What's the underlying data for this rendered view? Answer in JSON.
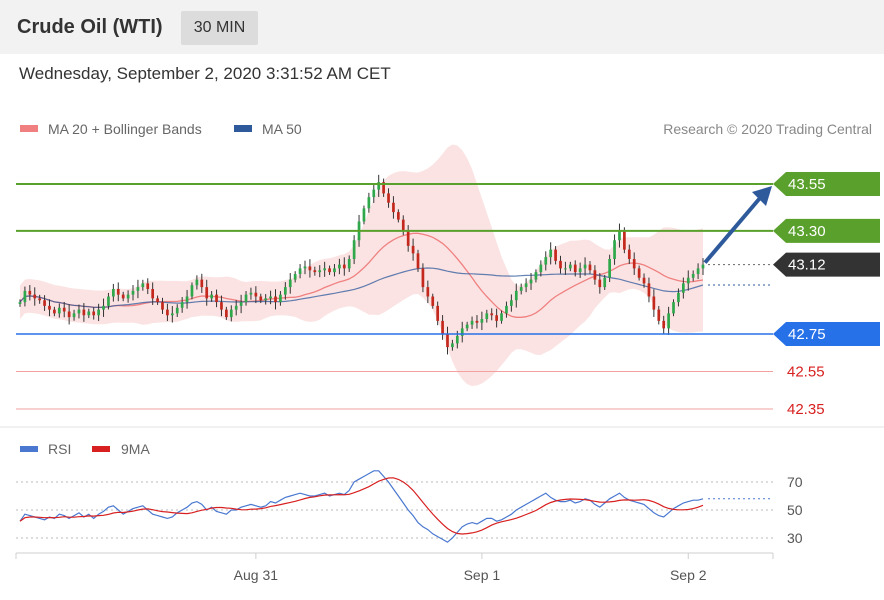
{
  "header": {
    "title": "Crude Oil (WTI)",
    "timeframe": "30 MIN",
    "datetime": "Wednesday, September 2, 2020 3:31:52 AM CET"
  },
  "legend": {
    "ma20_label": "MA 20 + Bollinger Bands",
    "ma20_color": "#f08080",
    "ma50_label": "MA 50",
    "ma50_color": "#2e5a9c",
    "credit": "Research © 2020 Trading Central"
  },
  "levels": [
    {
      "value": 43.55,
      "label": "43.55",
      "kind": "resistance",
      "color": "#5aa02c"
    },
    {
      "value": 43.3,
      "label": "43.30",
      "kind": "resistance",
      "color": "#5aa02c"
    },
    {
      "value": 43.12,
      "label": "43.12",
      "kind": "last",
      "color": "#333333"
    },
    {
      "value": 42.75,
      "label": "42.75",
      "kind": "pivot",
      "color": "#2670e8"
    },
    {
      "value": 42.55,
      "label": "42.55",
      "kind": "support",
      "color": "#d82020"
    },
    {
      "value": 42.35,
      "label": "42.35",
      "kind": "support",
      "color": "#d82020"
    }
  ],
  "rsi_legend": {
    "rsi_label": "RSI",
    "rsi_color": "#4a78d0",
    "ma_label": "9MA",
    "ma_color": "#d82020"
  },
  "rsi_levels": [
    {
      "value": 70,
      "label": "70"
    },
    {
      "value": 50,
      "label": "50"
    },
    {
      "value": 30,
      "label": "30"
    }
  ],
  "x_axis": {
    "labels": [
      {
        "label": "Aug 31",
        "index": 48
      },
      {
        "label": "Sep 1",
        "index": 94
      },
      {
        "label": "Sep 2",
        "index": 136
      }
    ]
  },
  "chart_data": {
    "type": "candlestick",
    "ylim": [
      42.2,
      43.7
    ],
    "rsi_ylim": [
      18,
      82
    ],
    "closes": [
      42.92,
      42.98,
      42.96,
      42.94,
      42.93,
      42.9,
      42.88,
      42.86,
      42.89,
      42.87,
      42.84,
      42.86,
      42.88,
      42.85,
      42.87,
      42.85,
      42.88,
      42.9,
      42.95,
      42.99,
      42.96,
      42.94,
      42.96,
      42.98,
      43,
      43.02,
      42.99,
      42.94,
      42.92,
      42.88,
      42.85,
      42.86,
      42.89,
      42.92,
      42.95,
      43.01,
      43.04,
      43,
      42.94,
      42.96,
      42.92,
      42.88,
      42.84,
      42.88,
      42.9,
      42.92,
      42.96,
      42.97,
      42.95,
      42.93,
      42.94,
      42.95,
      42.92,
      42.96,
      43,
      43.04,
      43.07,
      43.1,
      43.11,
      43.09,
      43.08,
      43.09,
      43.1,
      43.08,
      43.1,
      43.12,
      43.1,
      43.15,
      43.25,
      43.35,
      43.42,
      43.48,
      43.52,
      43.56,
      43.5,
      43.45,
      43.4,
      43.36,
      43.3,
      43.22,
      43.18,
      43.1,
      43,
      42.95,
      42.9,
      42.82,
      42.75,
      42.68,
      42.7,
      42.74,
      42.78,
      42.8,
      42.82,
      42.81,
      42.83,
      42.86,
      42.85,
      42.82,
      42.86,
      42.9,
      42.93,
      42.98,
      43,
      43.02,
      43.04,
      43.08,
      43.12,
      43.16,
      43.2,
      43.14,
      43.1,
      43.1,
      43.12,
      43.08,
      43.1,
      43.12,
      43.09,
      43.04,
      43,
      43.05,
      43.15,
      43.25,
      43.3,
      43.2,
      43.15,
      43.1,
      43.05,
      43.02,
      42.95,
      42.88,
      42.82,
      42.78,
      42.86,
      42.92,
      42.97,
      43.02,
      43.05,
      43.07,
      43.1,
      43.12
    ],
    "rsi": [
      42,
      47,
      46,
      45,
      44,
      43,
      45,
      44,
      47,
      46,
      44,
      46,
      48,
      45,
      47,
      44,
      47,
      49,
      52,
      53,
      50,
      47,
      49,
      51,
      52,
      53,
      50,
      47,
      46,
      45,
      44,
      45,
      48,
      50,
      52,
      55,
      56,
      54,
      50,
      52,
      49,
      48,
      47,
      50,
      50,
      52,
      53,
      54,
      53,
      52,
      53,
      56,
      55,
      57,
      59,
      60,
      61,
      62,
      61,
      60,
      60,
      61,
      62,
      60,
      61,
      62,
      61,
      64,
      70,
      72,
      74,
      76,
      78,
      78,
      74,
      70,
      65,
      60,
      55,
      50,
      46,
      41,
      38,
      36,
      33,
      31,
      29,
      27,
      30,
      34,
      38,
      40,
      41,
      40,
      42,
      44,
      44,
      42,
      43,
      45,
      47,
      50,
      52,
      54,
      56,
      58,
      60,
      62,
      59,
      57,
      56,
      56,
      57,
      55,
      56,
      58,
      57,
      54,
      52,
      55,
      58,
      60,
      62,
      59,
      57,
      56,
      55,
      54,
      51,
      48,
      46,
      45,
      48,
      51,
      53,
      55,
      56,
      57,
      57,
      58
    ]
  }
}
